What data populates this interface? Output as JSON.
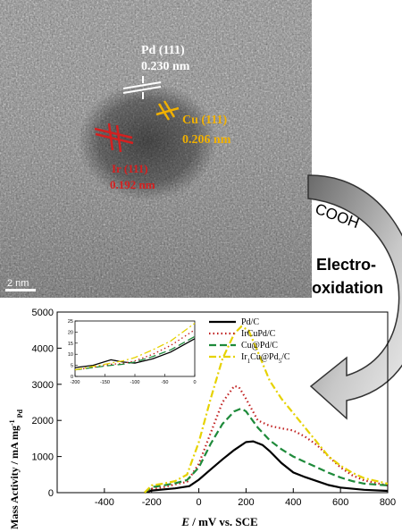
{
  "tem": {
    "pd_label": "Pd (111)",
    "pd_spacing": "0.230 nm",
    "cu_label": "Cu (111)",
    "cu_spacing": "0.206 nm",
    "ir_label": "Ir (111)",
    "ir_spacing": "0.192 nm",
    "scale_bar": "2 nm",
    "colors": {
      "pd": "#ffffff",
      "cu": "#f0b000",
      "ir": "#d42020"
    }
  },
  "arrow": {
    "group_label": "COOH",
    "process_label_line1": "Electro-",
    "process_label_line2": "oxidation"
  },
  "chart_data": {
    "type": "line",
    "xlabel_var": "E",
    "xlabel_unit": " / mV vs. SCE",
    "ylabel": "Mass Activity / mA mg",
    "ylabel_sup": "-1",
    "ylabel_sub": "Pd",
    "xlim": [
      -600,
      800
    ],
    "ylim": [
      0,
      5000
    ],
    "x_ticks": [
      -400,
      -200,
      0,
      200,
      400,
      600,
      800
    ],
    "y_ticks": [
      0,
      1000,
      2000,
      3000,
      4000,
      5000
    ],
    "legend_position": "top-right",
    "series": [
      {
        "name": "Pd/C",
        "color": "#000000",
        "dash": "solid",
        "points": [
          [
            -230,
            0
          ],
          [
            -200,
            60
          ],
          [
            -100,
            120
          ],
          [
            -40,
            180
          ],
          [
            0,
            360
          ],
          [
            50,
            640
          ],
          [
            100,
            920
          ],
          [
            150,
            1180
          ],
          [
            200,
            1400
          ],
          [
            230,
            1420
          ],
          [
            270,
            1320
          ],
          [
            300,
            1150
          ],
          [
            350,
            820
          ],
          [
            400,
            560
          ],
          [
            450,
            430
          ],
          [
            500,
            320
          ],
          [
            550,
            210
          ],
          [
            600,
            140
          ],
          [
            700,
            80
          ],
          [
            800,
            50
          ]
        ]
      },
      {
        "name": "IrCuPd/C",
        "color": "#c02020",
        "dash": "dotted",
        "points": [
          [
            -230,
            0
          ],
          [
            -200,
            110
          ],
          [
            -150,
            150
          ],
          [
            -100,
            230
          ],
          [
            -50,
            300
          ],
          [
            0,
            800
          ],
          [
            50,
            1650
          ],
          [
            100,
            2500
          ],
          [
            150,
            2950
          ],
          [
            170,
            2920
          ],
          [
            200,
            2600
          ],
          [
            250,
            2000
          ],
          [
            300,
            1850
          ],
          [
            350,
            1780
          ],
          [
            400,
            1720
          ],
          [
            450,
            1550
          ],
          [
            500,
            1320
          ],
          [
            550,
            1000
          ],
          [
            600,
            700
          ],
          [
            650,
            480
          ],
          [
            700,
            340
          ],
          [
            800,
            200
          ]
        ]
      },
      {
        "name": "Cu@Pd/C",
        "color": "#1e8a3a",
        "dash": "dashed",
        "points": [
          [
            -230,
            0
          ],
          [
            -200,
            150
          ],
          [
            -150,
            200
          ],
          [
            -100,
            260
          ],
          [
            -50,
            350
          ],
          [
            0,
            700
          ],
          [
            50,
            1350
          ],
          [
            100,
            1900
          ],
          [
            150,
            2250
          ],
          [
            180,
            2330
          ],
          [
            200,
            2250
          ],
          [
            250,
            1800
          ],
          [
            300,
            1450
          ],
          [
            350,
            1200
          ],
          [
            400,
            1000
          ],
          [
            450,
            850
          ],
          [
            500,
            700
          ],
          [
            550,
            550
          ],
          [
            600,
            420
          ],
          [
            650,
            320
          ],
          [
            700,
            250
          ],
          [
            800,
            200
          ]
        ]
      },
      {
        "name": "Ir1Cu@Pd5/C",
        "color": "#e6d200",
        "dash": "dashdot",
        "points": [
          [
            -230,
            0
          ],
          [
            -200,
            200
          ],
          [
            -150,
            250
          ],
          [
            -100,
            320
          ],
          [
            -50,
            500
          ],
          [
            0,
            1400
          ],
          [
            50,
            2600
          ],
          [
            100,
            3700
          ],
          [
            150,
            4400
          ],
          [
            180,
            4600
          ],
          [
            210,
            4500
          ],
          [
            250,
            3900
          ],
          [
            300,
            3100
          ],
          [
            350,
            2600
          ],
          [
            400,
            2200
          ],
          [
            450,
            1800
          ],
          [
            500,
            1400
          ],
          [
            550,
            1000
          ],
          [
            600,
            750
          ],
          [
            650,
            550
          ],
          [
            700,
            400
          ],
          [
            800,
            250
          ]
        ]
      }
    ],
    "legend": [
      {
        "main": "Pd/C"
      },
      {
        "main": "IrCuPd/C"
      },
      {
        "main": "Cu@Pd/C"
      },
      {
        "main": "Ir",
        "s1": "1",
        "mid": "Cu@Pd",
        "s2": "5",
        "end": "/C"
      }
    ],
    "inset": {
      "xlim": [
        -200,
        0
      ],
      "ylim": [
        0,
        25
      ],
      "x_ticks": [
        -200,
        -150,
        -100,
        -50,
        0
      ],
      "y_ticks": [
        0,
        5,
        10,
        15,
        20,
        25
      ],
      "series": [
        {
          "name": "Pd/C",
          "points": [
            [
              -200,
              4
            ],
            [
              -170,
              5
            ],
            [
              -140,
              7.5
            ],
            [
              -120,
              6.5
            ],
            [
              -100,
              6
            ],
            [
              -70,
              8
            ],
            [
              -40,
              11
            ],
            [
              0,
              17
            ]
          ]
        },
        {
          "name": "IrCuPd/C",
          "points": [
            [
              -200,
              3
            ],
            [
              -170,
              4
            ],
            [
              -140,
              5.5
            ],
            [
              -120,
              5.8
            ],
            [
              -100,
              7
            ],
            [
              -70,
              10
            ],
            [
              -40,
              14
            ],
            [
              0,
              21
            ]
          ]
        },
        {
          "name": "Cu@Pd/C",
          "points": [
            [
              -200,
              3
            ],
            [
              -170,
              4
            ],
            [
              -140,
              5
            ],
            [
              -120,
              5.5
            ],
            [
              -100,
              6.5
            ],
            [
              -70,
              9
            ],
            [
              -40,
              12
            ],
            [
              0,
              18
            ]
          ]
        },
        {
          "name": "Ir1Cu@Pd5/C",
          "points": [
            [
              -200,
              3
            ],
            [
              -170,
              4.5
            ],
            [
              -140,
              6
            ],
            [
              -120,
              7
            ],
            [
              -100,
              8.5
            ],
            [
              -70,
              12
            ],
            [
              -40,
              16
            ],
            [
              0,
              24
            ]
          ]
        }
      ]
    }
  }
}
